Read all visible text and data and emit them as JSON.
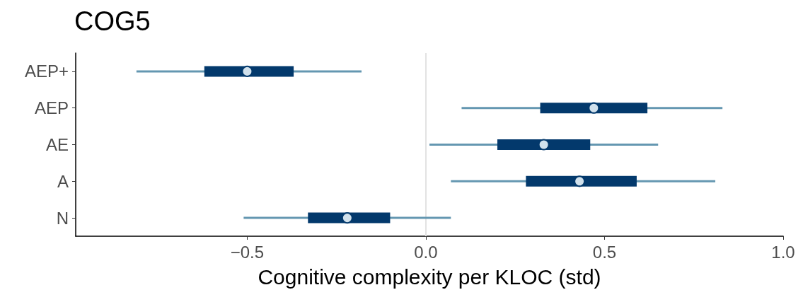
{
  "chart_data": {
    "type": "box",
    "orientation": "horizontal",
    "title": "COG5",
    "xlabel": "Cognitive complexity per KLOC (std)",
    "categories": [
      "AEP+",
      "AEP",
      "AE",
      "A",
      "N"
    ],
    "series": [
      {
        "color": "#03396c",
        "boxes": [
          {
            "low": -0.81,
            "q1": -0.62,
            "median": -0.5,
            "q3": -0.37,
            "high": -0.18
          },
          {
            "low": 0.1,
            "q1": 0.32,
            "median": 0.47,
            "q3": 0.62,
            "high": 0.83
          },
          {
            "low": 0.01,
            "q1": 0.2,
            "median": 0.33,
            "q3": 0.46,
            "high": 0.65
          },
          {
            "low": 0.07,
            "q1": 0.28,
            "median": 0.43,
            "q3": 0.59,
            "high": 0.81
          },
          {
            "low": -0.51,
            "q1": -0.33,
            "median": -0.22,
            "q3": -0.1,
            "high": 0.07
          }
        ]
      }
    ],
    "xlim": [
      -0.98,
      1.0
    ],
    "xticks": [
      {
        "value": -0.5,
        "label": "−0.5"
      },
      {
        "value": 0,
        "label": "0.0"
      },
      0.5,
      {
        "value": 1,
        "label": "1.0"
      }
    ],
    "ref_lines": [
      {
        "axis": "x",
        "value": 0,
        "color": "#e3e3e3"
      }
    ],
    "grid": false
  }
}
